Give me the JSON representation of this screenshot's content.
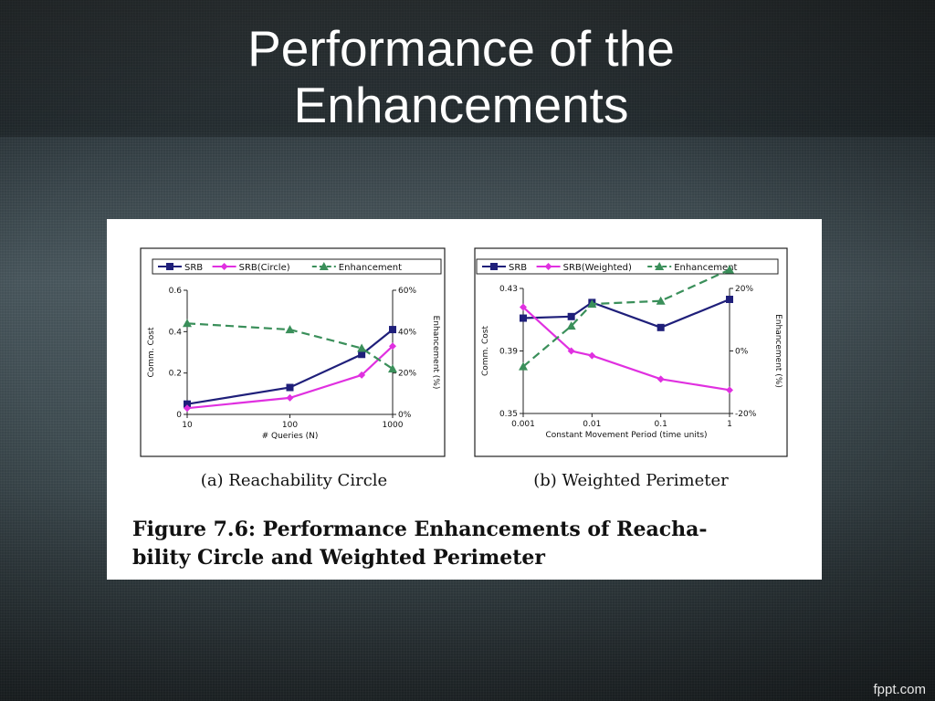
{
  "slide": {
    "title_line1": "Performance of the",
    "title_line2": "Enhancements",
    "footer": "fppt.com"
  },
  "figure": {
    "caption_line1": "Figure 7.6: Performance Enhancements of Reacha-",
    "caption_line2": "bility Circle and Weighted Perimeter"
  },
  "colors": {
    "srb": "#1f1f7a",
    "variant": "#e030e0",
    "enhancement": "#3a8f5a"
  },
  "chart_data": [
    {
      "type": "line",
      "subtitle": "(a) Reachability Circle",
      "xlabel": "# Queries (N)",
      "ylabel": "Comm. Cost",
      "y2label": "Enhancement (%)",
      "x_scale": "log",
      "xlim": [
        10,
        1000
      ],
      "x_ticks": [
        "10",
        "100",
        "1000"
      ],
      "ylim": [
        0,
        0.6
      ],
      "y_ticks": [
        "0",
        "0.2",
        "0.4",
        "0.6"
      ],
      "y2lim": [
        0,
        60
      ],
      "y2_ticks": [
        "0%",
        "20%",
        "40%",
        "60%"
      ],
      "legend_position": "top",
      "series": [
        {
          "name": "SRB",
          "axis": "left",
          "marker": "square",
          "x": [
            10,
            100,
            500,
            1000
          ],
          "y": [
            0.05,
            0.13,
            0.29,
            0.41
          ]
        },
        {
          "name": "SRB(Circle)",
          "axis": "left",
          "marker": "diamond",
          "x": [
            10,
            100,
            500,
            1000
          ],
          "y": [
            0.03,
            0.08,
            0.19,
            0.33
          ]
        },
        {
          "name": "Enhancement",
          "axis": "right",
          "marker": "triangle",
          "dashed": true,
          "x": [
            10,
            100,
            500,
            1000
          ],
          "y": [
            44,
            41,
            32,
            22
          ]
        }
      ]
    },
    {
      "type": "line",
      "subtitle": "(b) Weighted Perimeter",
      "xlabel": "Constant Movement Period (time units)",
      "ylabel": "Comm. Cost",
      "y2label": "Enhancement (%)",
      "x_scale": "log",
      "xlim": [
        0.001,
        1
      ],
      "x_ticks": [
        "0.001",
        "0.01",
        "0.1",
        "1"
      ],
      "ylim": [
        0.35,
        0.43
      ],
      "y_ticks": [
        "0.35",
        "0.39",
        "0.43"
      ],
      "y2lim": [
        -20,
        20
      ],
      "y2_ticks": [
        "-20%",
        "0%",
        "20%"
      ],
      "legend_position": "top",
      "series": [
        {
          "name": "SRB",
          "axis": "left",
          "marker": "square",
          "x": [
            0.001,
            0.005,
            0.01,
            0.1,
            1
          ],
          "y": [
            0.411,
            0.412,
            0.421,
            0.405,
            0.423
          ]
        },
        {
          "name": "SRB(Weighted)",
          "axis": "left",
          "marker": "diamond",
          "x": [
            0.001,
            0.005,
            0.01,
            0.1,
            1
          ],
          "y": [
            0.418,
            0.39,
            0.387,
            0.372,
            0.365
          ]
        },
        {
          "name": "Enhancement",
          "axis": "right",
          "marker": "triangle",
          "dashed": true,
          "x": [
            0.001,
            0.005,
            0.01,
            0.1,
            1
          ],
          "y": [
            -5,
            8,
            15,
            16,
            26
          ]
        }
      ]
    }
  ]
}
